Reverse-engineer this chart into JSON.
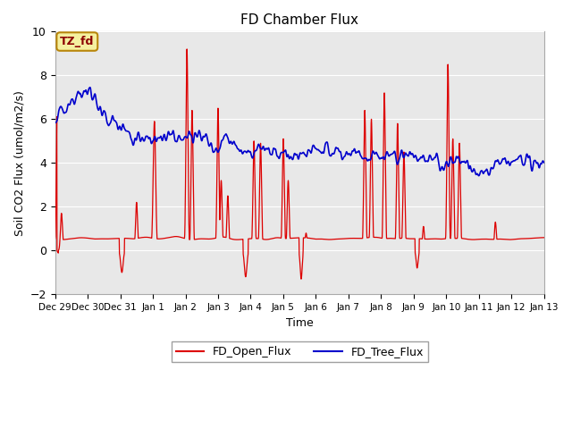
{
  "title": "FD Chamber Flux",
  "xlabel": "Time",
  "ylabel": "Soil CO2 Flux (umol/m2/s)",
  "ylim": [
    -2,
    10
  ],
  "yticks": [
    -2,
    0,
    2,
    4,
    6,
    8,
    10
  ],
  "annotation_text": "TZ_fd",
  "annotation_color": "#8b0000",
  "annotation_bg": "#f5f0a0",
  "annotation_border": "#b8860b",
  "legend_labels": [
    "FD_Open_Flux",
    "FD_Tree_Flux"
  ],
  "open_color": "#dd0000",
  "tree_color": "#0000cc",
  "plot_bg": "#e8e8e8",
  "grid_color": "#ffffff",
  "linewidth_open": 0.9,
  "linewidth_tree": 1.2,
  "n_points": 2000,
  "xtick_labels": [
    "Dec 29",
    "Dec 30",
    "Dec 31",
    "Jan 1",
    "Jan 2",
    "Jan 3",
    "Jan 4",
    "Jan 5",
    "Jan 6",
    "Jan 7",
    "Jan 8",
    "Jan 9",
    "Jan 10",
    "Jan 11",
    "Jan 12",
    "Jan 13"
  ],
  "figsize": [
    6.4,
    4.8
  ],
  "dpi": 100
}
